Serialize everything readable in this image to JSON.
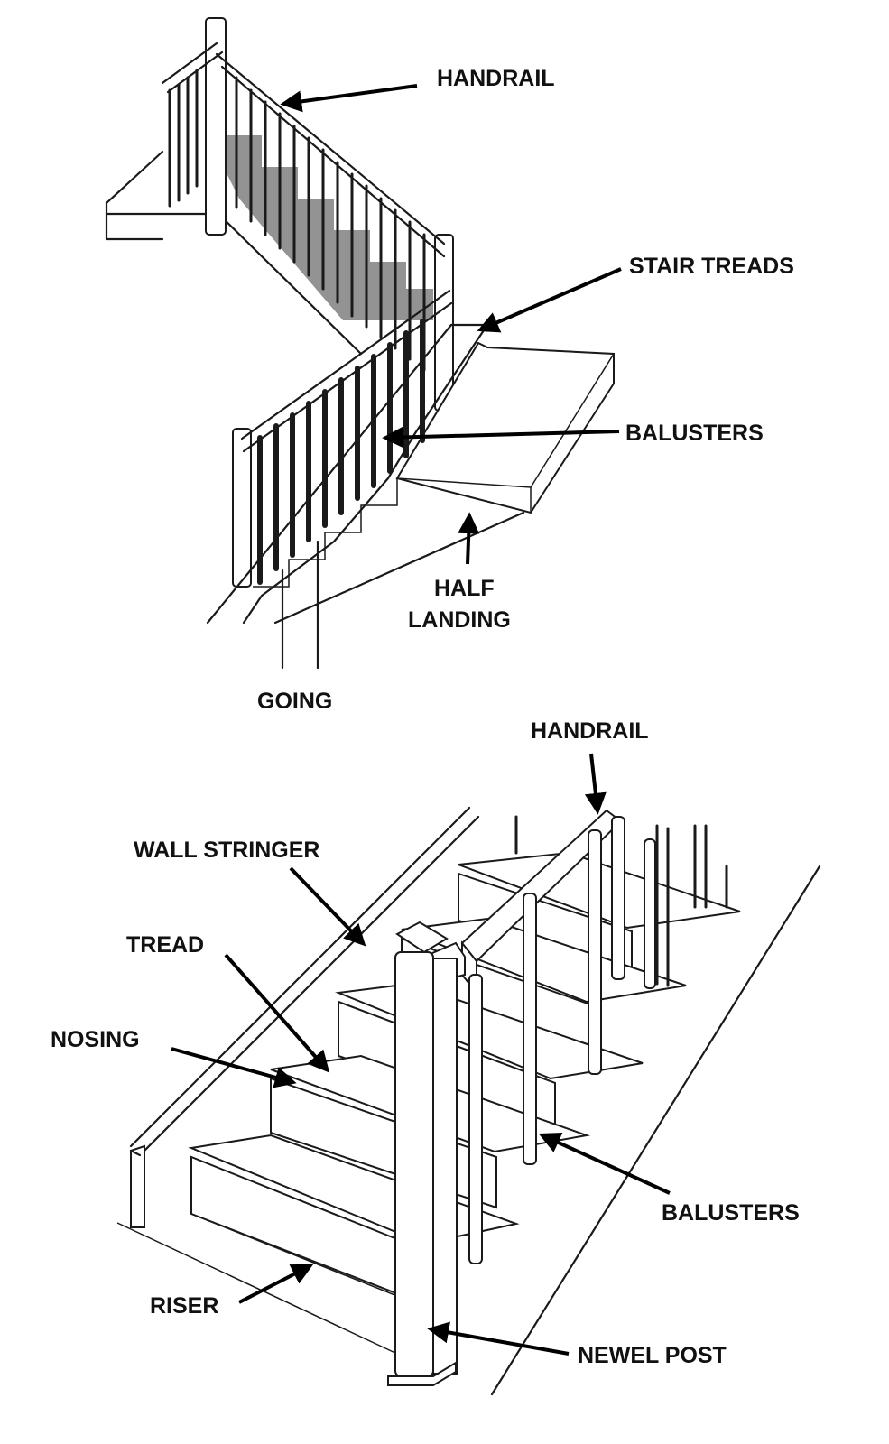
{
  "top_diagram": {
    "labels": {
      "handrail": "HANDRAIL",
      "stair_treads": "STAIR TREADS",
      "balusters": "BALUSTERS",
      "half_landing_line1": "HALF",
      "half_landing_line2": "LANDING",
      "going": "GOING"
    }
  },
  "bottom_diagram": {
    "labels": {
      "handrail": "HANDRAIL",
      "wall_stringer": "WALL STRINGER",
      "tread": "TREAD",
      "nosing": "NOSING",
      "balusters": "BALUSTERS",
      "riser": "RISER",
      "newel_post": "NEWEL POST"
    }
  }
}
